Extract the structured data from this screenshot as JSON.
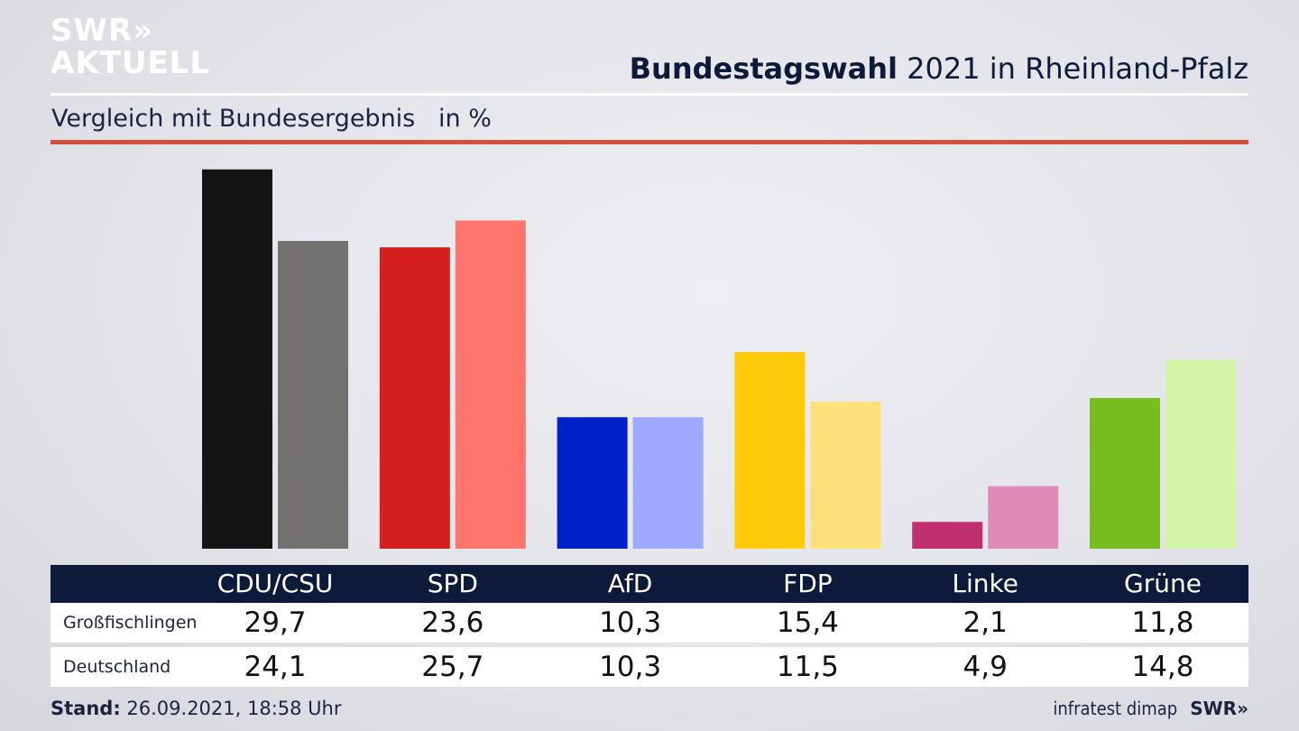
{
  "header": {
    "logo_line1": "SWR»",
    "logo_line2": "AKTUELL",
    "title_bold": "Bundestagswahl",
    "title_rest": " 2021 in Rheinland-Pfalz",
    "subtitle": "Vergleich mit Bundesergebnis   in %"
  },
  "colors": {
    "header_bar": "#0e1a3a",
    "accent_rule": "#d3503c"
  },
  "chart_data": {
    "type": "bar",
    "categories": [
      "CDU/CSU",
      "SPD",
      "AfD",
      "FDP",
      "Linke",
      "Grüne"
    ],
    "series": [
      {
        "name": "Großfischlingen",
        "values": [
          29.7,
          23.6,
          10.3,
          15.4,
          2.1,
          11.8
        ],
        "display": [
          "29,7",
          "23,6",
          "10,3",
          "15,4",
          "2,1",
          "11,8"
        ],
        "colors": [
          "#141414",
          "#d61f1f",
          "#0021c7",
          "#ffca0a",
          "#c0306e",
          "#78bd1e"
        ]
      },
      {
        "name": "Deutschland",
        "values": [
          24.1,
          25.7,
          10.3,
          11.5,
          4.9,
          14.8
        ],
        "display": [
          "24,1",
          "25,7",
          "10,3",
          "11,5",
          "4,9",
          "14,8"
        ],
        "colors": [
          "#72716f",
          "#ff746c",
          "#9eaaff",
          "#fde07a",
          "#e08ab8",
          "#d4f4a8"
        ]
      }
    ],
    "ylim": [
      0,
      30
    ]
  },
  "footer": {
    "stand_label": "Stand:",
    "stand_value": " 26.09.2021, 18:58 Uhr",
    "source": "infratest dimap",
    "brand": "SWR»"
  }
}
